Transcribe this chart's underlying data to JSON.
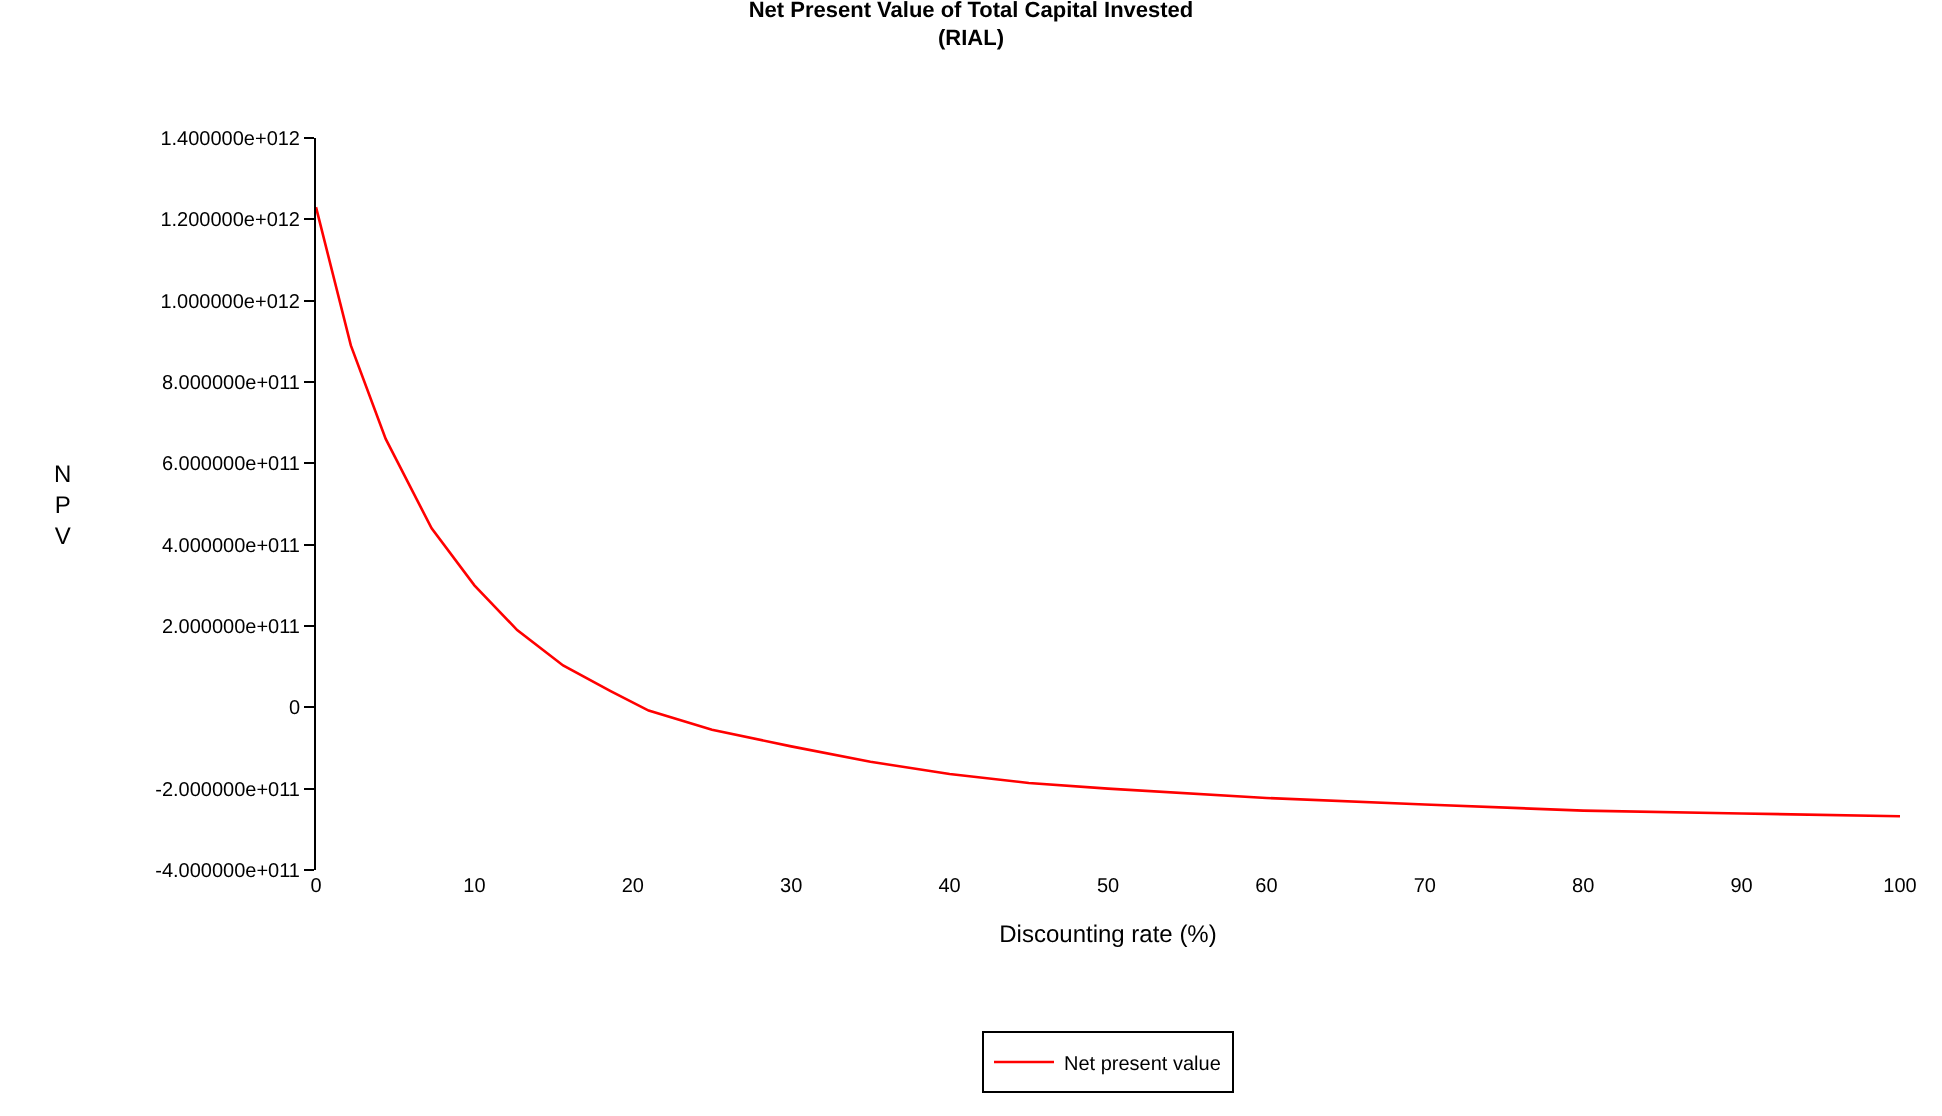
{
  "chart_data": {
    "type": "line",
    "title": "Net Present Value of Total Capital Invested",
    "subtitle": "(RIAL)",
    "xlabel": "Discounting rate (%)",
    "ylabel": "NPV",
    "x": [
      0,
      2.2,
      4.4,
      7.3,
      10,
      12.7,
      15.6,
      18.6,
      21,
      25,
      30,
      35,
      40,
      45,
      50,
      60,
      70,
      80,
      90,
      100
    ],
    "series": [
      {
        "name": "Net present value",
        "color": "#ff0000",
        "values": [
          1230000000000.0,
          890000000000.0,
          660000000000.0,
          440000000000.0,
          300000000000.0,
          190000000000.0,
          103000000000.0,
          40000000000.0,
          -8000000000.0,
          -55000000000.0,
          -96000000000.0,
          -134000000000.0,
          -164000000000.0,
          -186000000000.0,
          -200000000000.0,
          -223000000000.0,
          -239000000000.0,
          -254000000000.0,
          -261000000000.0,
          -268000000000.0
        ]
      }
    ],
    "xlim": [
      0,
      100
    ],
    "xticks": [
      0,
      10,
      20,
      30,
      40,
      50,
      60,
      70,
      80,
      90,
      100
    ],
    "ylim": [
      -400000000000.0,
      1400000000000.0
    ],
    "yticks": [
      {
        "value": -400000000000.0,
        "label": "-4.000000e+011"
      },
      {
        "value": -200000000000.0,
        "label": "-2.000000e+011"
      },
      0,
      {
        "value": 200000000000.0,
        "label": "2.000000e+011"
      },
      {
        "value": 400000000000.0,
        "label": "4.000000e+011"
      },
      {
        "value": 600000000000.0,
        "label": "6.000000e+011"
      },
      {
        "value": 800000000000.0,
        "label": "8.000000e+011"
      },
      {
        "value": 1000000000000.0,
        "label": "1.000000e+012"
      },
      {
        "value": 1200000000000.0,
        "label": "1.200000e+012"
      },
      {
        "value": 1400000000000.0,
        "label": "1.400000e+012"
      }
    ],
    "grid": false,
    "legend": "bottom",
    "marker": "none",
    "line_style": "solid"
  }
}
